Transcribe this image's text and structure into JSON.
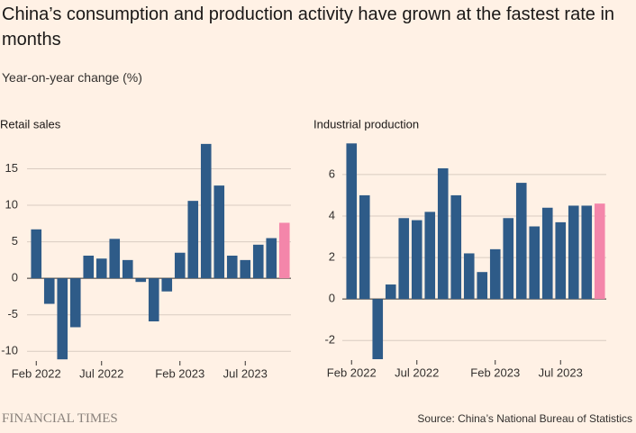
{
  "title": "China’s consumption and production activity have grown at the fastest rate in months",
  "subtitle": "Year-on-year change (%)",
  "brand": "FINANCIAL TIMES",
  "source": "Source: China’s National Bureau of Statistics",
  "chart_data": [
    {
      "type": "bar",
      "title": "Retail sales",
      "categories": [
        "Feb 2022",
        null,
        null,
        null,
        null,
        "Jul 2022",
        null,
        null,
        null,
        null,
        null,
        "Feb 2023",
        null,
        null,
        null,
        null,
        "Jul 2023",
        null,
        null,
        null
      ],
      "values": [
        6.7,
        -3.5,
        -11.1,
        -6.7,
        3.1,
        2.7,
        5.4,
        2.5,
        -0.5,
        -5.9,
        -1.8,
        3.5,
        10.6,
        18.4,
        12.7,
        3.1,
        2.5,
        4.6,
        5.5,
        7.6
      ],
      "colors": [
        "#2e5b88",
        "#2e5b88",
        "#2e5b88",
        "#2e5b88",
        "#2e5b88",
        "#2e5b88",
        "#2e5b88",
        "#2e5b88",
        "#2e5b88",
        "#2e5b88",
        "#2e5b88",
        "#2e5b88",
        "#2e5b88",
        "#2e5b88",
        "#2e5b88",
        "#2e5b88",
        "#2e5b88",
        "#2e5b88",
        "#2e5b88",
        "#f486aa"
      ],
      "ylim": [
        -11.2,
        19
      ],
      "yticks": [
        -10,
        -5,
        0,
        5,
        10,
        15
      ],
      "grid": true
    },
    {
      "type": "bar",
      "title": "Industrial production",
      "categories": [
        "Feb 2022",
        null,
        null,
        null,
        null,
        "Jul 2022",
        null,
        null,
        null,
        null,
        null,
        "Feb 2023",
        null,
        null,
        null,
        null,
        "Jul 2023",
        null,
        null,
        null
      ],
      "values": [
        7.5,
        5.0,
        -2.9,
        0.7,
        3.9,
        3.8,
        4.2,
        6.3,
        5.0,
        2.2,
        1.3,
        2.4,
        3.9,
        5.6,
        3.5,
        4.4,
        3.7,
        4.5,
        4.5,
        4.6
      ],
      "colors": [
        "#2e5b88",
        "#2e5b88",
        "#2e5b88",
        "#2e5b88",
        "#2e5b88",
        "#2e5b88",
        "#2e5b88",
        "#2e5b88",
        "#2e5b88",
        "#2e5b88",
        "#2e5b88",
        "#2e5b88",
        "#2e5b88",
        "#2e5b88",
        "#2e5b88",
        "#2e5b88",
        "#2e5b88",
        "#2e5b88",
        "#2e5b88",
        "#f486aa"
      ],
      "ylim": [
        -2.9,
        7.6
      ],
      "yticks": [
        -2,
        0,
        2,
        4,
        6
      ],
      "grid": true
    }
  ]
}
